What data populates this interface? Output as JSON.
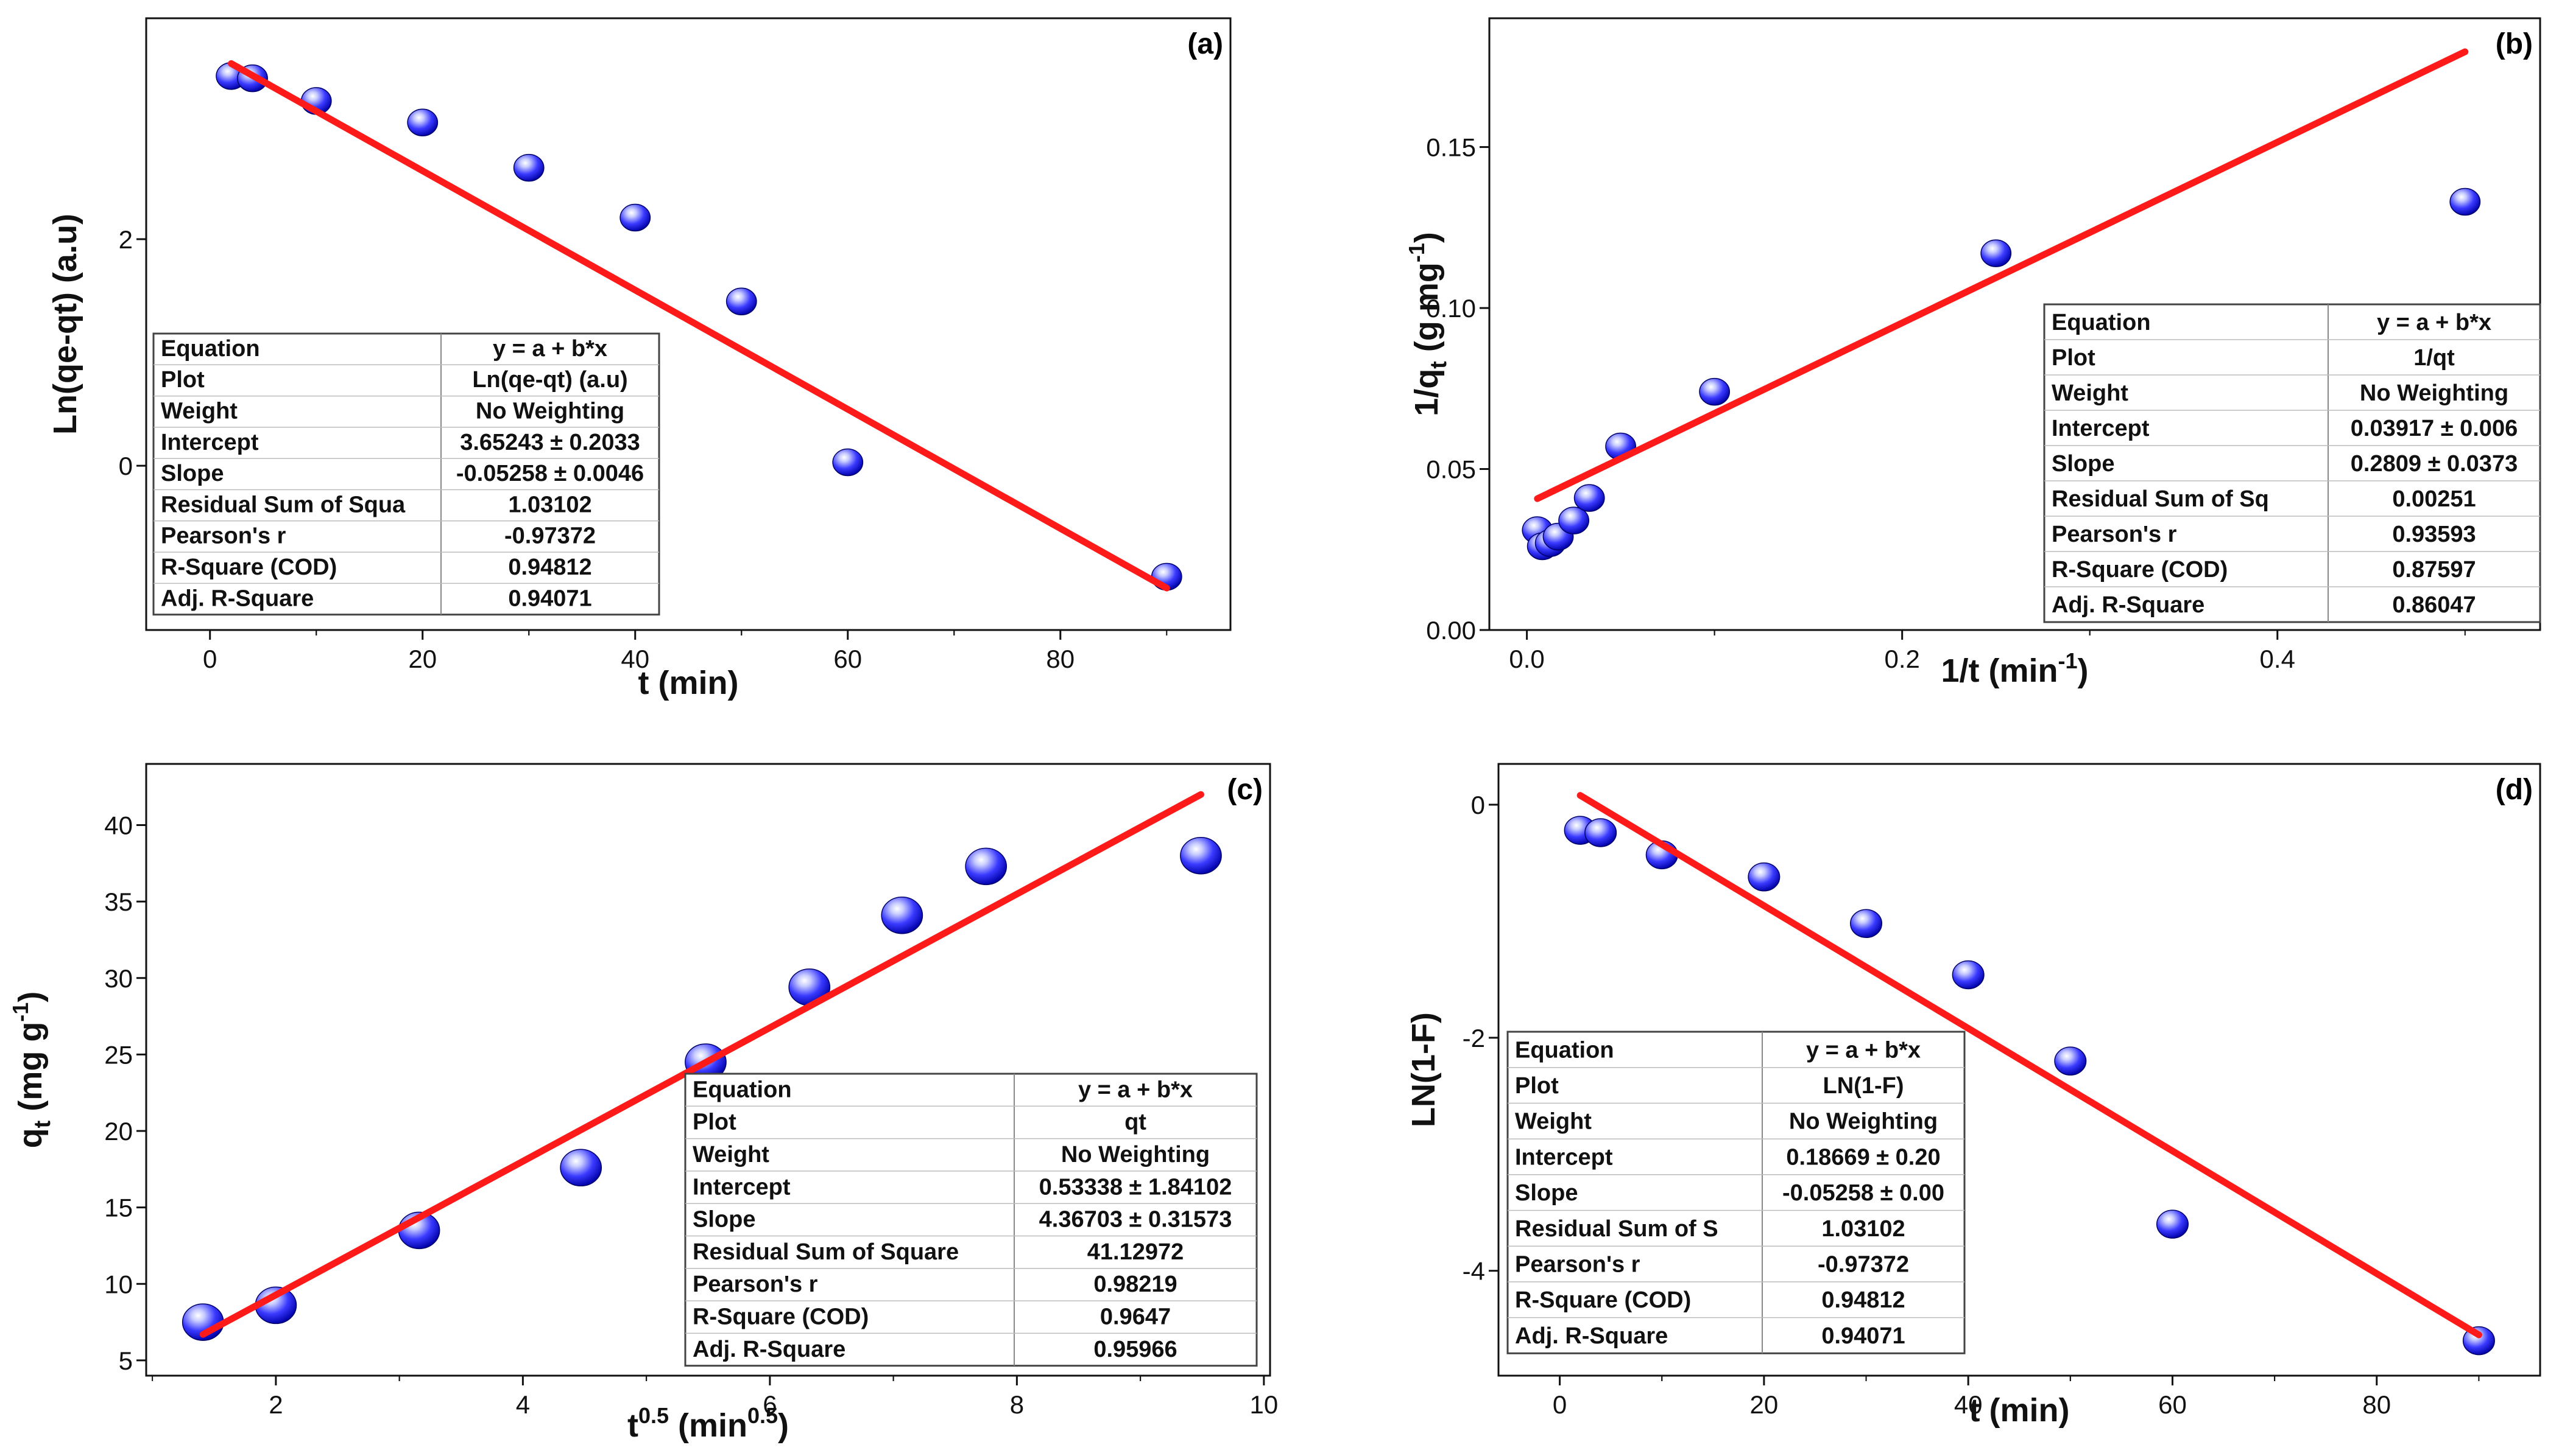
{
  "chart_data": [
    {
      "type": "scatter",
      "panel_label": "(a)",
      "xlabel": "t (min)",
      "ylabel": "Ln(qe-qt) (a.u)",
      "xlim": [
        -6,
        96
      ],
      "ylim": [
        -1.45,
        3.95
      ],
      "xticks": [
        0,
        20,
        40,
        60,
        80
      ],
      "yticks": [
        0,
        2
      ],
      "series": [
        {
          "name": "Ln(qe-qt) (a.u)",
          "x": [
            2,
            4,
            10,
            20,
            30,
            40,
            50,
            60,
            90
          ],
          "y": [
            3.44,
            3.42,
            3.22,
            3.03,
            2.63,
            2.19,
            1.45,
            0.03,
            -0.98
          ]
        },
        {
          "name": "Linear Fit",
          "x": [
            2,
            90
          ],
          "y": [
            3.55,
            -1.08
          ]
        }
      ],
      "fit_table": {
        "rows": [
          [
            "Equation",
            "y = a + b*x"
          ],
          [
            "Plot",
            "Ln(qe-qt) (a.u)"
          ],
          [
            "Weight",
            "No Weighting"
          ],
          [
            "Intercept",
            "3.65243 ± 0.2033"
          ],
          [
            "Slope",
            "-0.05258 ± 0.0046"
          ],
          [
            "Residual Sum of Squa",
            "1.03102"
          ],
          [
            "Pearson's r",
            "-0.97372"
          ],
          [
            "R-Square (COD)",
            "0.94812"
          ],
          [
            "Adj. R-Square",
            "0.94071"
          ]
        ]
      }
    },
    {
      "type": "scatter",
      "panel_label": "(b)",
      "xlabel": "1/t (min",
      "xlabel_sup": "-1",
      "xlabel_end": ")",
      "ylabel": "1/q",
      "ylabel_sub": "t",
      "ylabel_mid": " (g mg",
      "ylabel_sup": "-1",
      "ylabel_end": ")",
      "xlim": [
        -0.02,
        0.54
      ],
      "ylim": [
        0,
        0.19
      ],
      "xticks": [
        0.0,
        0.2,
        0.4
      ],
      "xtick_labels": [
        "0.0",
        "0.2",
        "0.4"
      ],
      "yticks": [
        0.0,
        0.05,
        0.1,
        0.15
      ],
      "ytick_labels": [
        "0.00",
        "0.05",
        "0.10",
        "0.15"
      ],
      "series": [
        {
          "name": "1/qt",
          "x": [
            0.0056,
            0.0083,
            0.0125,
            0.0167,
            0.025,
            0.0333,
            0.05,
            0.1,
            0.25,
            0.5
          ],
          "y": [
            0.031,
            0.026,
            0.027,
            0.029,
            0.034,
            0.041,
            0.057,
            0.074,
            0.117,
            0.133
          ]
        },
        {
          "name": "Linear Fit",
          "x": [
            0.0056,
            0.5
          ],
          "y": [
            0.0408,
            0.1796
          ]
        }
      ],
      "fit_table": {
        "rows": [
          [
            "Equation",
            "y = a + b*x"
          ],
          [
            "Plot",
            "1/qt"
          ],
          [
            "Weight",
            "No Weighting"
          ],
          [
            "Intercept",
            "0.03917 ± 0.006"
          ],
          [
            "Slope",
            "0.2809 ± 0.0373"
          ],
          [
            "Residual Sum of Sq",
            "0.00251"
          ],
          [
            "Pearson's r",
            "0.93593"
          ],
          [
            "R-Square (COD)",
            "0.87597"
          ],
          [
            "Adj. R-Square",
            "0.86047"
          ]
        ]
      }
    },
    {
      "type": "scatter",
      "panel_label": "(c)",
      "xlabel": "t",
      "xlabel_sup": "0.5",
      "xlabel_mid": " (min",
      "xlabel_sup2": "0.5",
      "xlabel_end": ")",
      "ylabel": "q",
      "ylabel_sub": "t",
      "ylabel_mid": " (mg g",
      "ylabel_sup": "-1",
      "ylabel_end": ")",
      "xlim": [
        0.95,
        10.05
      ],
      "ylim": [
        4,
        44
      ],
      "xticks": [
        2,
        4,
        6,
        8,
        10
      ],
      "yticks": [
        5,
        10,
        15,
        20,
        25,
        30,
        35,
        40
      ],
      "series": [
        {
          "name": "qt",
          "x": [
            1.41,
            2.0,
            3.16,
            4.47,
            5.48,
            6.32,
            7.07,
            7.75,
            9.49
          ],
          "y": [
            7.5,
            8.6,
            13.5,
            17.6,
            24.5,
            29.4,
            34.1,
            37.3,
            38.0
          ]
        },
        {
          "name": "Linear Fit",
          "x": [
            1.41,
            9.49
          ],
          "y": [
            6.7,
            42.0
          ]
        }
      ],
      "fit_table": {
        "rows": [
          [
            "Equation",
            "y = a + b*x"
          ],
          [
            "Plot",
            "qt"
          ],
          [
            "Weight",
            "No Weighting"
          ],
          [
            "Intercept",
            "0.53338 ± 1.84102"
          ],
          [
            "Slope",
            "4.36703 ± 0.31573"
          ],
          [
            "Residual Sum of Square",
            "41.12972"
          ],
          [
            "Pearson's r",
            "0.98219"
          ],
          [
            "R-Square (COD)",
            "0.9647"
          ],
          [
            "Adj. R-Square",
            "0.95966"
          ]
        ]
      }
    },
    {
      "type": "scatter",
      "panel_label": "(d)",
      "xlabel": "t (min)",
      "ylabel": "LN(1-F)",
      "xlim": [
        -6,
        96
      ],
      "ylim": [
        -4.9,
        0.35
      ],
      "xticks": [
        0,
        20,
        40,
        60,
        80
      ],
      "yticks": [
        0,
        -2,
        -4
      ],
      "series": [
        {
          "name": "LN(1-F)",
          "x": [
            2,
            4,
            10,
            20,
            30,
            40,
            50,
            60,
            90
          ],
          "y": [
            -0.22,
            -0.24,
            -0.43,
            -0.62,
            -1.02,
            -1.46,
            -2.2,
            -3.6,
            -4.6
          ]
        },
        {
          "name": "Linear Fit",
          "x": [
            2,
            90
          ],
          "y": [
            0.08,
            -4.55
          ]
        }
      ],
      "fit_table": {
        "rows": [
          [
            "Equation",
            "y = a + b*x"
          ],
          [
            "Plot",
            "LN(1-F)"
          ],
          [
            "Weight",
            "No Weighting"
          ],
          [
            "Intercept",
            "0.18669 ± 0.20"
          ],
          [
            "Slope",
            "-0.05258 ± 0.00"
          ],
          [
            "Residual Sum of S",
            "1.03102"
          ],
          [
            "Pearson's r",
            "-0.97372"
          ],
          [
            "R-Square (COD)",
            "0.94812"
          ],
          [
            "Adj. R-Square",
            "0.94071"
          ]
        ]
      }
    }
  ],
  "colors": {
    "fit_line": "#ff1a1a",
    "marker_light": "#c8ccff",
    "marker_mid": "#3a3aff",
    "marker_dark": "#0000a8",
    "axis": "#111111",
    "table_border": "#444444"
  }
}
